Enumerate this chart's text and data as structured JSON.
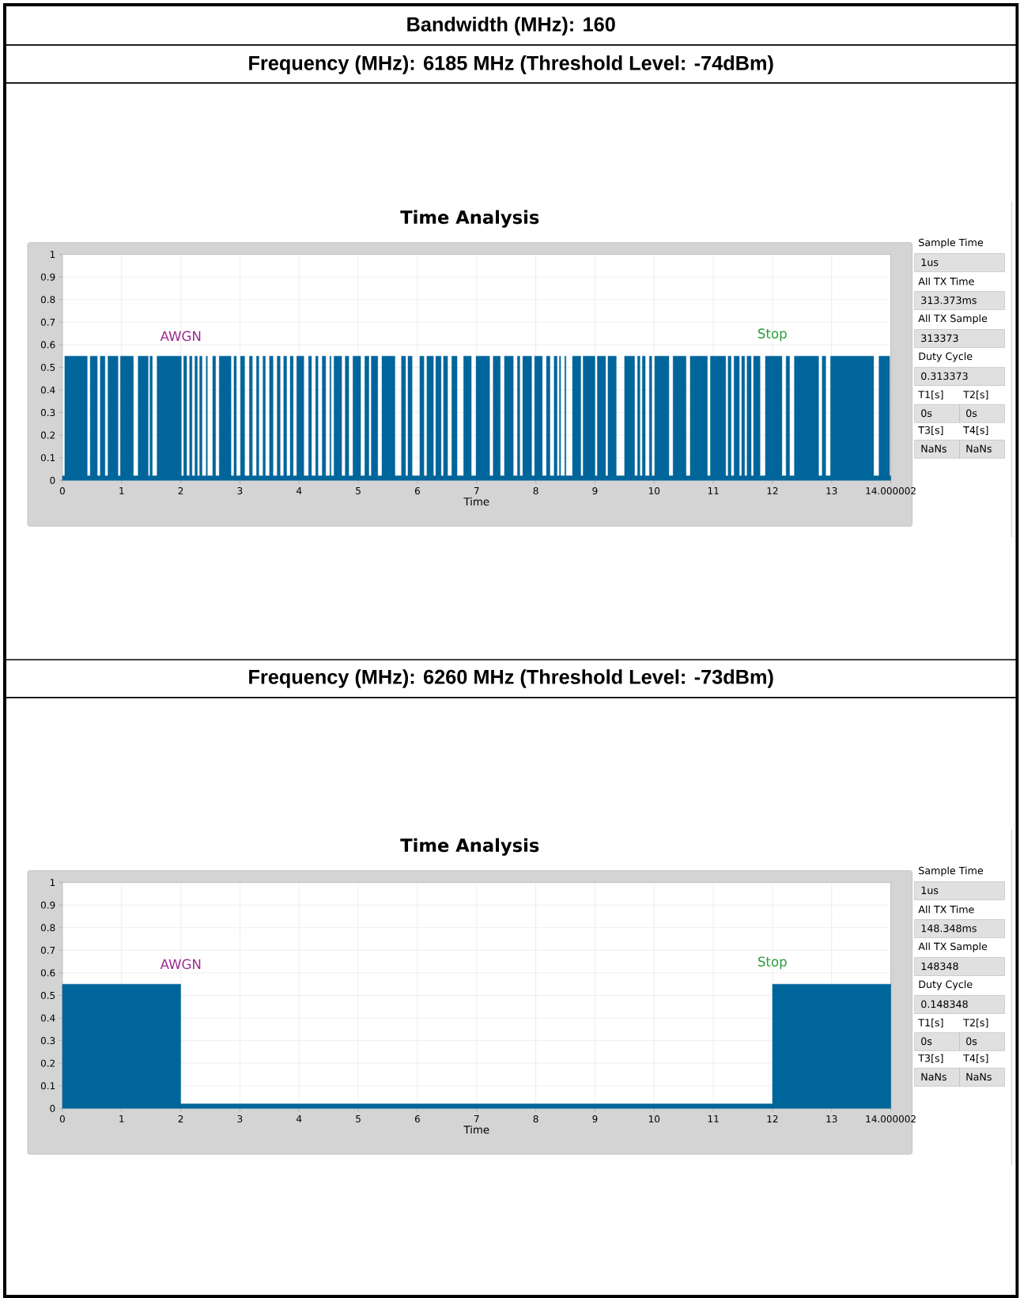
{
  "chart_data": [
    {
      "type": "step",
      "title": "Time Analysis",
      "xlabel": "Time",
      "annotations": [
        "Bandwidth (MHz): 160",
        "Frequency (MHz): 6185 MHz (Threshold Level: -74dBm)",
        "AWGN",
        "Stop"
      ],
      "xlim": [
        0,
        14.000002
      ],
      "ylim": [
        0,
        1
      ],
      "xticks": [
        0,
        1,
        2,
        3,
        4,
        5,
        6,
        7,
        8,
        9,
        10,
        11,
        12,
        13,
        14.000002
      ],
      "yticks": [
        0,
        0.1,
        0.2,
        0.3,
        0.4,
        0.5,
        0.6,
        0.7,
        0.8,
        0.9,
        1
      ],
      "grid": true,
      "series": [
        {
          "type": "area",
          "color": "#00659b",
          "x": [
            0,
            0.04,
            0.04,
            0.42,
            0.42,
            0.47,
            0.47,
            0.59,
            0.59,
            0.64,
            0.64,
            0.72,
            0.72,
            0.77,
            0.77,
            0.94,
            0.94,
            0.98,
            0.98,
            1.2,
            1.2,
            1.28,
            1.28,
            1.45,
            1.45,
            1.48,
            1.48,
            1.52,
            1.52,
            1.6,
            1.6,
            2.01,
            2.01,
            2.05,
            2.05,
            2.1,
            2.1,
            2.15,
            2.15,
            2.19,
            2.19,
            2.24,
            2.24,
            2.28,
            2.28,
            2.32,
            2.32,
            2.36,
            2.36,
            2.43,
            2.43,
            2.45,
            2.45,
            2.54,
            2.54,
            2.59,
            2.59,
            2.65,
            2.65,
            2.85,
            2.85,
            2.9,
            2.9,
            2.94,
            2.94,
            3.01,
            3.01,
            3.08,
            3.08,
            3.16,
            3.16,
            3.21,
            3.21,
            3.28,
            3.28,
            3.32,
            3.32,
            3.39,
            3.39,
            3.43,
            3.43,
            3.5,
            3.5,
            3.56,
            3.56,
            3.63,
            3.63,
            3.68,
            3.68,
            3.74,
            3.74,
            3.79,
            3.79,
            3.85,
            3.85,
            3.9,
            3.9,
            3.96,
            3.96,
            4.08,
            4.08,
            4.16,
            4.16,
            4.21,
            4.21,
            4.28,
            4.28,
            4.32,
            4.32,
            4.39,
            4.39,
            4.45,
            4.45,
            4.52,
            4.52,
            4.54,
            4.54,
            4.59,
            4.59,
            4.72,
            4.72,
            4.78,
            4.78,
            4.84,
            4.84,
            4.91,
            4.91,
            5.04,
            5.04,
            5.11,
            5.11,
            5.18,
            5.18,
            5.22,
            5.22,
            5.33,
            5.33,
            5.4,
            5.4,
            5.62,
            5.62,
            5.73,
            5.73,
            5.8,
            5.8,
            5.84,
            5.84,
            5.91,
            5.91,
            6.04,
            6.04,
            6.11,
            6.11,
            6.16,
            6.16,
            6.27,
            6.27,
            6.31,
            6.31,
            6.4,
            6.4,
            6.44,
            6.44,
            6.51,
            6.51,
            6.58,
            6.58,
            6.67,
            6.67,
            6.78,
            6.78,
            6.91,
            6.91,
            6.99,
            6.99,
            7.22,
            7.22,
            7.28,
            7.28,
            7.4,
            7.4,
            7.47,
            7.47,
            7.62,
            7.62,
            7.69,
            7.69,
            7.73,
            7.73,
            7.78,
            7.78,
            7.93,
            7.93,
            7.98,
            7.98,
            8.11,
            8.11,
            8.18,
            8.18,
            8.24,
            8.24,
            8.31,
            8.31,
            8.36,
            8.36,
            8.4,
            8.4,
            8.42,
            8.42,
            8.49,
            8.49,
            8.51,
            8.51,
            8.62,
            8.62,
            8.76,
            8.76,
            8.8,
            8.8,
            9.0,
            9.0,
            9.04,
            9.04,
            9.18,
            9.18,
            9.22,
            9.22,
            9.36,
            9.36,
            9.5,
            9.5,
            9.67,
            9.67,
            9.72,
            9.72,
            9.76,
            9.76,
            9.8,
            9.8,
            9.85,
            9.85,
            9.92,
            9.92,
            9.96,
            9.96,
            10.01,
            10.01,
            10.25,
            10.25,
            10.32,
            10.32,
            10.54,
            10.54,
            10.61,
            10.61,
            10.9,
            10.9,
            10.95,
            10.95,
            11.21,
            11.21,
            11.25,
            11.25,
            11.3,
            11.3,
            11.35,
            11.35,
            11.44,
            11.44,
            11.48,
            11.48,
            11.53,
            11.53,
            11.57,
            11.57,
            11.64,
            11.64,
            11.68,
            11.68,
            11.79,
            11.79,
            11.88,
            11.88,
            12.16,
            12.16,
            12.23,
            12.23,
            12.29,
            12.29,
            12.37,
            12.37,
            12.78,
            12.78,
            12.84,
            12.84,
            12.9,
            12.9,
            12.98,
            12.98,
            13.71,
            13.71,
            13.8,
            13.8,
            13.98,
            13.98,
            14.000002
          ],
          "values": [
            0.02,
            0.02,
            0.55,
            0.55,
            0.02,
            0.02,
            0.55,
            0.55,
            0.02,
            0.02,
            0.55,
            0.55,
            0.02,
            0.02,
            0.55,
            0.55,
            0.02,
            0.02,
            0.55,
            0.55,
            0.02,
            0.02,
            0.55,
            0.55,
            0.02,
            0.02,
            0.55,
            0.55,
            0.02,
            0.02,
            0.55,
            0.55,
            0.02,
            0.02,
            0.55,
            0.55,
            0.02,
            0.02,
            0.55,
            0.55,
            0.02,
            0.02,
            0.55,
            0.55,
            0.02,
            0.02,
            0.55,
            0.55,
            0.02,
            0.02,
            0.55,
            0.55,
            0.02,
            0.02,
            0.55,
            0.55,
            0.02,
            0.02,
            0.55,
            0.55,
            0.02,
            0.02,
            0.55,
            0.55,
            0.02,
            0.02,
            0.55,
            0.55,
            0.02,
            0.02,
            0.55,
            0.55,
            0.02,
            0.02,
            0.55,
            0.55,
            0.02,
            0.02,
            0.55,
            0.55,
            0.02,
            0.02,
            0.55,
            0.55,
            0.02,
            0.02,
            0.55,
            0.55,
            0.02,
            0.02,
            0.55,
            0.55,
            0.02,
            0.02,
            0.55,
            0.55,
            0.02,
            0.02,
            0.55,
            0.55,
            0.02,
            0.02,
            0.55,
            0.55,
            0.02,
            0.02,
            0.55,
            0.55,
            0.02,
            0.02,
            0.55,
            0.55,
            0.02,
            0.02,
            0.55,
            0.55,
            0.02,
            0.02,
            0.55,
            0.55,
            0.02,
            0.02,
            0.55,
            0.55,
            0.02,
            0.02,
            0.55,
            0.55,
            0.02,
            0.02,
            0.55,
            0.55,
            0.02,
            0.02,
            0.55,
            0.55,
            0.02,
            0.02,
            0.55,
            0.55,
            0.02,
            0.02,
            0.55,
            0.55,
            0.02,
            0.02,
            0.55,
            0.55,
            0.02,
            0.02,
            0.55,
            0.55,
            0.02,
            0.02,
            0.55,
            0.55,
            0.02,
            0.02,
            0.55,
            0.55,
            0.02,
            0.02,
            0.55,
            0.55,
            0.02,
            0.02,
            0.55,
            0.55,
            0.02,
            0.02,
            0.55,
            0.55,
            0.02,
            0.02,
            0.55,
            0.55,
            0.02,
            0.02,
            0.55,
            0.55,
            0.02,
            0.02,
            0.55,
            0.55,
            0.02,
            0.02,
            0.55,
            0.55,
            0.02,
            0.02,
            0.55,
            0.55,
            0.02,
            0.02,
            0.55,
            0.55,
            0.02,
            0.02,
            0.55,
            0.55,
            0.02,
            0.02,
            0.55,
            0.55,
            0.02,
            0.02,
            0.55,
            0.55,
            0.02,
            0.02,
            0.55,
            0.55,
            0.02,
            0.02,
            0.55,
            0.55,
            0.02,
            0.02,
            0.55,
            0.55,
            0.02,
            0.02,
            0.55,
            0.55,
            0.02,
            0.02,
            0.55,
            0.55,
            0.02,
            0.02,
            0.55,
            0.55,
            0.02,
            0.02,
            0.55,
            0.55,
            0.02,
            0.02,
            0.55,
            0.55,
            0.02,
            0.02,
            0.55,
            0.55,
            0.02,
            0.02,
            0.55,
            0.55,
            0.02,
            0.02,
            0.55,
            0.55,
            0.02,
            0.02,
            0.55,
            0.55,
            0.02,
            0.02,
            0.55,
            0.55,
            0.02,
            0.02,
            0.55,
            0.55,
            0.02,
            0.02,
            0.55,
            0.55,
            0.02,
            0.02,
            0.55,
            0.55,
            0.02,
            0.02,
            0.55,
            0.55,
            0.02,
            0.02,
            0.55,
            0.55,
            0.02,
            0.02,
            0.55,
            0.55,
            0.02,
            0.02,
            0.55,
            0.55,
            0.02,
            0.02,
            0.55,
            0.55,
            0.02,
            0.02,
            0.55,
            0.55,
            0.02,
            0.02,
            0.55,
            0.55,
            0.02,
            0.02,
            0.55,
            0.55,
            0.02,
            0.02
          ]
        }
      ]
    },
    {
      "type": "other",
      "annotations": [
        "Sample Time",
        "1us",
        "All TX Time",
        "313.373ms",
        "All TX Sample",
        "313373",
        "Duty Cycle",
        "0.313373",
        "T1[s]",
        "T2[s]",
        "0s",
        "0s",
        "T3[s]",
        "T4[s]",
        "NaNs",
        "NaNs"
      ]
    },
    {
      "type": "step",
      "title": "Time Analysis",
      "xlabel": "Time",
      "annotations": [
        "Frequency (MHz): 6260 MHz (Threshold Level: -73dBm)",
        "AWGN",
        "Stop"
      ],
      "xlim": [
        0,
        14.000002
      ],
      "ylim": [
        0,
        1
      ],
      "xticks": [
        0,
        1,
        2,
        3,
        4,
        5,
        6,
        7,
        8,
        9,
        10,
        11,
        12,
        13,
        14.000002
      ],
      "yticks": [
        0,
        0.1,
        0.2,
        0.3,
        0.4,
        0.5,
        0.6,
        0.7,
        0.8,
        0.9,
        1
      ],
      "grid": true,
      "series": [
        {
          "type": "area",
          "color": "#00659b",
          "x": [
            0,
            2,
            2,
            12,
            12,
            14.000002
          ],
          "values": [
            0.55,
            0.55,
            0.02,
            0.02,
            0.55,
            0.55
          ]
        }
      ]
    },
    {
      "type": "other",
      "annotations": [
        "Sample Time",
        "1us",
        "All TX Time",
        "148.348ms",
        "All TX Sample",
        "148348",
        "Duty Cycle",
        "0.148348",
        "T1[s]",
        "T2[s]",
        "0s",
        "0s",
        "T3[s]",
        "T4[s]",
        "NaNs",
        "NaNs"
      ]
    }
  ]
}
